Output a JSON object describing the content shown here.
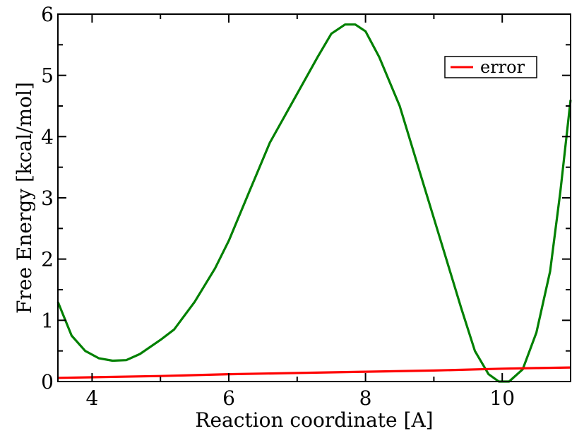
{
  "chart_data": {
    "type": "line",
    "title": "",
    "xlabel": "Reaction coordinate [A]",
    "ylabel": "Free Energy [kcal/mol]",
    "xlim": [
      3.5,
      11.0
    ],
    "ylim": [
      0,
      6
    ],
    "x_ticks": [
      "4",
      "6",
      "8",
      "10"
    ],
    "y_ticks": [
      "0",
      "1",
      "2",
      "3",
      "4",
      "5",
      "6"
    ],
    "grid": false,
    "legend_position": "top-right",
    "series": [
      {
        "name": "",
        "color": "#008000",
        "points": [
          [
            3.5,
            1.3
          ],
          [
            3.7,
            0.75
          ],
          [
            3.9,
            0.5
          ],
          [
            4.1,
            0.38
          ],
          [
            4.3,
            0.34
          ],
          [
            4.5,
            0.35
          ],
          [
            4.7,
            0.45
          ],
          [
            5.0,
            0.68
          ],
          [
            5.2,
            0.85
          ],
          [
            5.5,
            1.3
          ],
          [
            5.8,
            1.85
          ],
          [
            6.0,
            2.3
          ],
          [
            6.3,
            3.1
          ],
          [
            6.6,
            3.9
          ],
          [
            7.0,
            4.7
          ],
          [
            7.3,
            5.3
          ],
          [
            7.5,
            5.68
          ],
          [
            7.7,
            5.83
          ],
          [
            7.85,
            5.83
          ],
          [
            8.0,
            5.72
          ],
          [
            8.2,
            5.3
          ],
          [
            8.5,
            4.5
          ],
          [
            8.8,
            3.4
          ],
          [
            9.1,
            2.3
          ],
          [
            9.4,
            1.2
          ],
          [
            9.6,
            0.5
          ],
          [
            9.8,
            0.12
          ],
          [
            9.95,
            0.0
          ],
          [
            10.1,
            0.0
          ],
          [
            10.3,
            0.2
          ],
          [
            10.5,
            0.8
          ],
          [
            10.7,
            1.8
          ],
          [
            10.85,
            3.1
          ],
          [
            11.0,
            4.6
          ]
        ]
      },
      {
        "name": "error",
        "color": "#ff0000",
        "points": [
          [
            3.5,
            0.06
          ],
          [
            5.0,
            0.09
          ],
          [
            6.0,
            0.12
          ],
          [
            7.0,
            0.14
          ],
          [
            8.0,
            0.16
          ],
          [
            9.0,
            0.18
          ],
          [
            10.0,
            0.21
          ],
          [
            10.5,
            0.22
          ],
          [
            11.0,
            0.23
          ]
        ]
      }
    ]
  }
}
